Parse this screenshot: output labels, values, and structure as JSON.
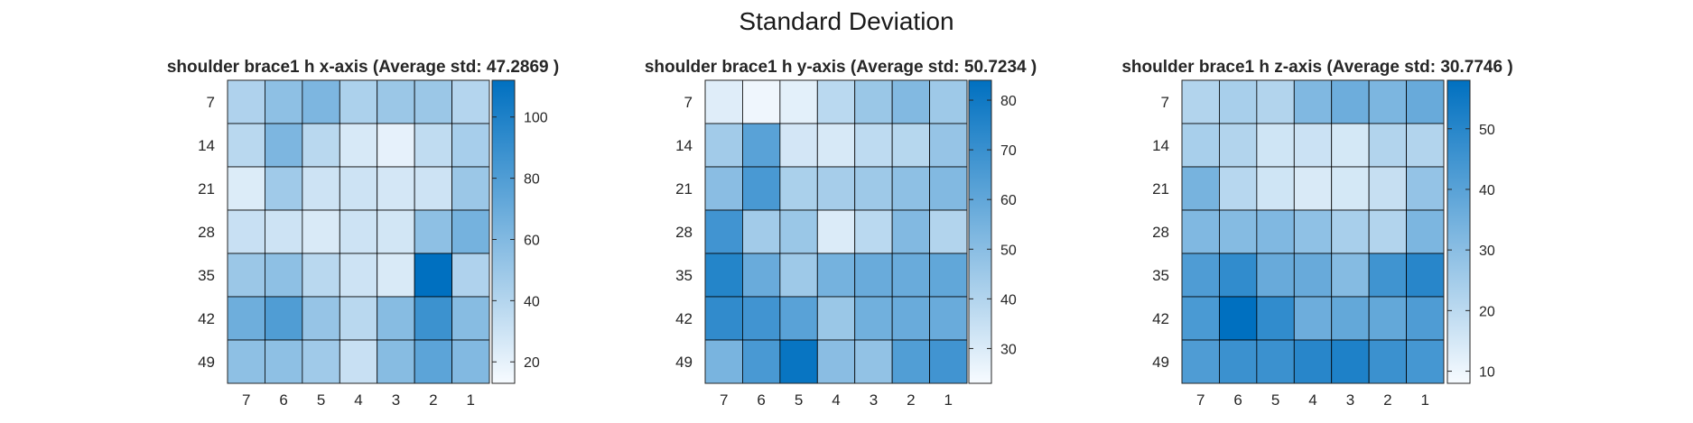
{
  "figure_title": "Standard Deviation",
  "chart_data": [
    {
      "type": "heatmap",
      "title": "shoulder brace1 h x-axis (Average std: 47.2869 )",
      "x_categories": [
        "7",
        "6",
        "5",
        "4",
        "3",
        "2",
        "1"
      ],
      "y_categories": [
        "7",
        "14",
        "21",
        "28",
        "35",
        "42",
        "49"
      ],
      "values": [
        [
          42,
          55,
          62,
          43,
          50,
          50,
          40
        ],
        [
          38,
          62,
          38,
          26,
          20,
          35,
          45
        ],
        [
          24,
          48,
          30,
          30,
          27,
          30,
          50
        ],
        [
          32,
          30,
          25,
          30,
          28,
          55,
          65
        ],
        [
          50,
          55,
          38,
          30,
          25,
          112,
          42
        ],
        [
          68,
          80,
          52,
          38,
          58,
          88,
          58
        ],
        [
          55,
          55,
          48,
          32,
          58,
          75,
          60
        ]
      ],
      "colorbar": {
        "range": [
          13,
          112
        ],
        "ticks": [
          20,
          40,
          60,
          80,
          100
        ]
      },
      "colormap": [
        "#f7fbff",
        "#0070c0"
      ]
    },
    {
      "type": "heatmap",
      "title": "shoulder brace1 h y-axis (Average std: 50.7234 )",
      "x_categories": [
        "7",
        "6",
        "5",
        "4",
        "3",
        "2",
        "1"
      ],
      "y_categories": [
        "7",
        "14",
        "21",
        "28",
        "35",
        "42",
        "49"
      ],
      "values": [
        [
          29,
          25,
          28,
          38,
          46,
          52,
          45
        ],
        [
          44,
          62,
          32,
          31,
          37,
          39,
          47
        ],
        [
          50,
          66,
          42,
          43,
          45,
          49,
          52
        ],
        [
          68,
          44,
          46,
          30,
          38,
          52,
          40
        ],
        [
          75,
          58,
          45,
          55,
          58,
          58,
          60
        ],
        [
          72,
          68,
          62,
          46,
          56,
          58,
          58
        ],
        [
          54,
          66,
          82,
          50,
          48,
          64,
          68
        ]
      ],
      "colorbar": {
        "range": [
          23,
          84
        ],
        "ticks": [
          30,
          40,
          50,
          60,
          70,
          80
        ]
      },
      "colormap": [
        "#f7fbff",
        "#0070c0"
      ]
    },
    {
      "type": "heatmap",
      "title": "shoulder brace1 h z-axis (Average std: 30.7746 )",
      "x_categories": [
        "7",
        "6",
        "5",
        "4",
        "3",
        "2",
        "1"
      ],
      "y_categories": [
        "7",
        "14",
        "21",
        "28",
        "35",
        "42",
        "49"
      ],
      "values": [
        [
          22,
          24,
          22,
          32,
          36,
          33,
          37
        ],
        [
          24,
          22,
          16,
          17,
          15,
          22,
          22
        ],
        [
          34,
          21,
          16,
          14,
          15,
          18,
          28
        ],
        [
          32,
          31,
          32,
          29,
          24,
          22,
          33
        ],
        [
          42,
          48,
          37,
          37,
          31,
          45,
          50
        ],
        [
          43,
          58,
          48,
          36,
          38,
          38,
          42
        ],
        [
          42,
          46,
          46,
          50,
          52,
          46,
          44
        ]
      ],
      "colorbar": {
        "range": [
          8,
          58
        ],
        "ticks": [
          10,
          20,
          30,
          40,
          50
        ]
      },
      "colormap": [
        "#f7fbff",
        "#0070c0"
      ]
    }
  ]
}
